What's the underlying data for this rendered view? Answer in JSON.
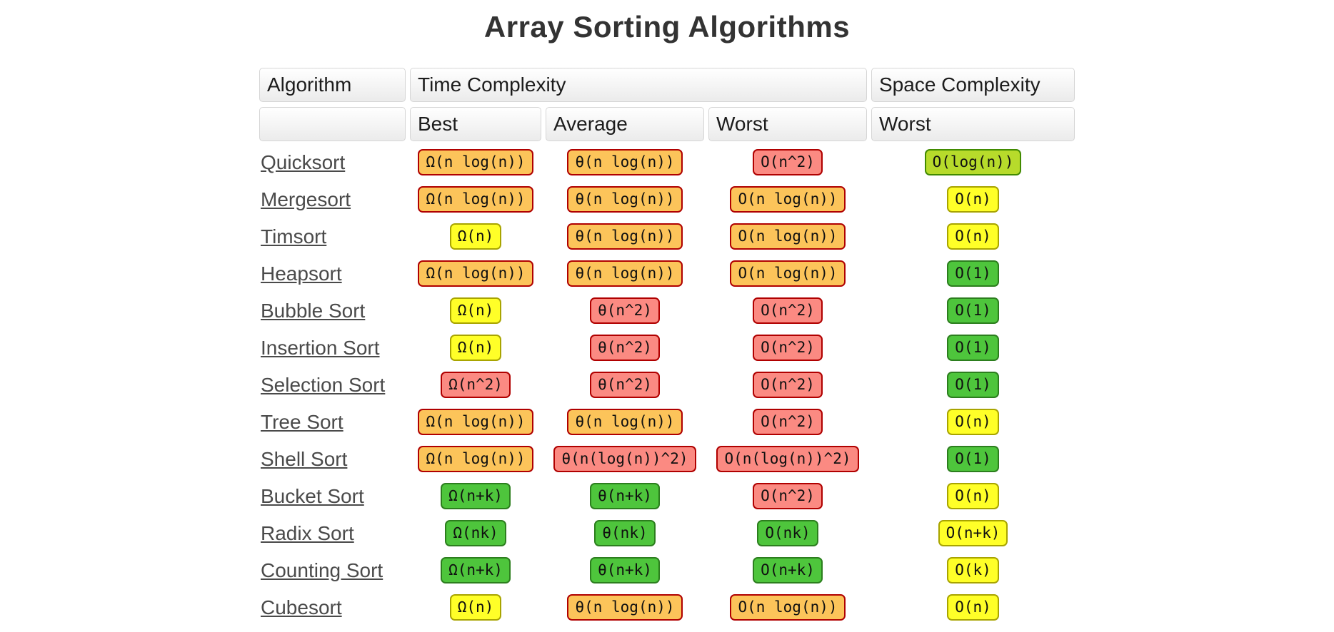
{
  "title": "Array Sorting Algorithms",
  "colors": {
    "excellent_bg": "#4ec53c",
    "excellent_border": "#2c7e1e",
    "good_bg": "#b7db2b",
    "good_border": "#418a00",
    "fair_bg": "#ffff28",
    "fair_border": "#a8a400",
    "bad_bg": "#fcc45a",
    "bad_border": "#b00000",
    "horrible_bg": "#fb8a82",
    "horrible_border": "#b00000",
    "title_color": "#333333",
    "link_color": "#4a4a4a"
  },
  "table": {
    "header_row1": {
      "algorithm": "Algorithm",
      "time": "Time Complexity",
      "space": "Space Complexity"
    },
    "header_row2": {
      "algorithm": "",
      "best": "Best",
      "average": "Average",
      "worst": "Worst",
      "space_worst": "Worst"
    },
    "rows": [
      {
        "name": "Quicksort",
        "best": {
          "text": "Ω(n log(n))",
          "level": "bad"
        },
        "average": {
          "text": "θ(n log(n))",
          "level": "bad"
        },
        "worst": {
          "text": "O(n^2)",
          "level": "horrible"
        },
        "space": {
          "text": "O(log(n))",
          "level": "good"
        }
      },
      {
        "name": "Mergesort",
        "best": {
          "text": "Ω(n log(n))",
          "level": "bad"
        },
        "average": {
          "text": "θ(n log(n))",
          "level": "bad"
        },
        "worst": {
          "text": "O(n log(n))",
          "level": "bad"
        },
        "space": {
          "text": "O(n)",
          "level": "fair"
        }
      },
      {
        "name": "Timsort",
        "best": {
          "text": "Ω(n)",
          "level": "fair"
        },
        "average": {
          "text": "θ(n log(n))",
          "level": "bad"
        },
        "worst": {
          "text": "O(n log(n))",
          "level": "bad"
        },
        "space": {
          "text": "O(n)",
          "level": "fair"
        }
      },
      {
        "name": "Heapsort",
        "best": {
          "text": "Ω(n log(n))",
          "level": "bad"
        },
        "average": {
          "text": "θ(n log(n))",
          "level": "bad"
        },
        "worst": {
          "text": "O(n log(n))",
          "level": "bad"
        },
        "space": {
          "text": "O(1)",
          "level": "excellent"
        }
      },
      {
        "name": "Bubble Sort",
        "best": {
          "text": "Ω(n)",
          "level": "fair"
        },
        "average": {
          "text": "θ(n^2)",
          "level": "horrible"
        },
        "worst": {
          "text": "O(n^2)",
          "level": "horrible"
        },
        "space": {
          "text": "O(1)",
          "level": "excellent"
        }
      },
      {
        "name": "Insertion Sort",
        "best": {
          "text": "Ω(n)",
          "level": "fair"
        },
        "average": {
          "text": "θ(n^2)",
          "level": "horrible"
        },
        "worst": {
          "text": "O(n^2)",
          "level": "horrible"
        },
        "space": {
          "text": "O(1)",
          "level": "excellent"
        }
      },
      {
        "name": "Selection Sort",
        "best": {
          "text": "Ω(n^2)",
          "level": "horrible"
        },
        "average": {
          "text": "θ(n^2)",
          "level": "horrible"
        },
        "worst": {
          "text": "O(n^2)",
          "level": "horrible"
        },
        "space": {
          "text": "O(1)",
          "level": "excellent"
        }
      },
      {
        "name": "Tree Sort",
        "best": {
          "text": "Ω(n log(n))",
          "level": "bad"
        },
        "average": {
          "text": "θ(n log(n))",
          "level": "bad"
        },
        "worst": {
          "text": "O(n^2)",
          "level": "horrible"
        },
        "space": {
          "text": "O(n)",
          "level": "fair"
        }
      },
      {
        "name": "Shell Sort",
        "best": {
          "text": "Ω(n log(n))",
          "level": "bad"
        },
        "average": {
          "text": "θ(n(log(n))^2)",
          "level": "horrible"
        },
        "worst": {
          "text": "O(n(log(n))^2)",
          "level": "horrible"
        },
        "space": {
          "text": "O(1)",
          "level": "excellent"
        }
      },
      {
        "name": "Bucket Sort",
        "best": {
          "text": "Ω(n+k)",
          "level": "excellent"
        },
        "average": {
          "text": "θ(n+k)",
          "level": "excellent"
        },
        "worst": {
          "text": "O(n^2)",
          "level": "horrible"
        },
        "space": {
          "text": "O(n)",
          "level": "fair"
        }
      },
      {
        "name": "Radix Sort",
        "best": {
          "text": "Ω(nk)",
          "level": "excellent"
        },
        "average": {
          "text": "θ(nk)",
          "level": "excellent"
        },
        "worst": {
          "text": "O(nk)",
          "level": "excellent"
        },
        "space": {
          "text": "O(n+k)",
          "level": "fair"
        }
      },
      {
        "name": "Counting Sort",
        "best": {
          "text": "Ω(n+k)",
          "level": "excellent"
        },
        "average": {
          "text": "θ(n+k)",
          "level": "excellent"
        },
        "worst": {
          "text": "O(n+k)",
          "level": "excellent"
        },
        "space": {
          "text": "O(k)",
          "level": "fair"
        }
      },
      {
        "name": "Cubesort",
        "best": {
          "text": "Ω(n)",
          "level": "fair"
        },
        "average": {
          "text": "θ(n log(n))",
          "level": "bad"
        },
        "worst": {
          "text": "O(n log(n))",
          "level": "bad"
        },
        "space": {
          "text": "O(n)",
          "level": "fair"
        }
      }
    ]
  }
}
